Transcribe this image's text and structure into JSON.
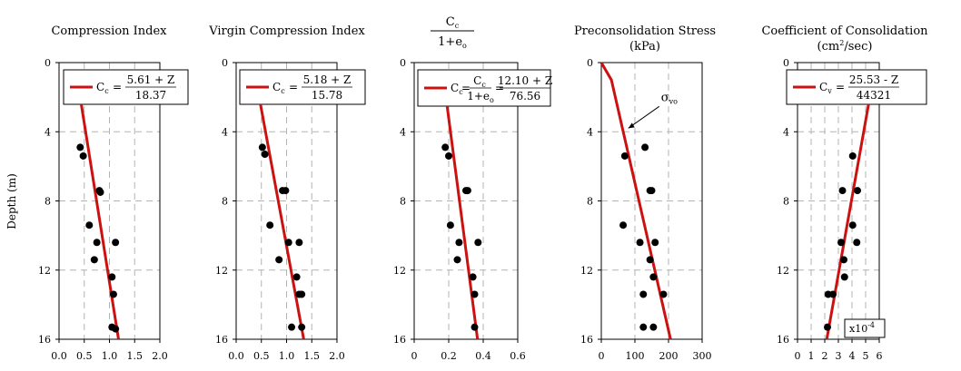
{
  "figure": {
    "ylabel": "Depth (m)"
  },
  "colors": {
    "fit_line": "#cc1111",
    "points": "#000000",
    "grid": "#b3b3b3",
    "axis": "#000000"
  },
  "chart_data": [
    {
      "type": "scatter",
      "title": "Compression Index",
      "xlim": [
        0,
        2
      ],
      "xticks": [
        "0.0",
        "0.5",
        "1.0",
        "1.5",
        "2.0"
      ],
      "ylim": [
        0,
        16
      ],
      "yticks": [
        "0",
        "4",
        "8",
        "12",
        "16"
      ],
      "grid": true,
      "legend": {
        "symbol": "C",
        "subscript": "c",
        "numerator": "5.61 + Z",
        "denominator": "18.37"
      },
      "fit": {
        "x": [
          0.31,
          1.18
        ],
        "y": [
          0,
          16
        ]
      },
      "points": [
        [
          0.42,
          4.9
        ],
        [
          0.48,
          5.4
        ],
        [
          0.8,
          7.4
        ],
        [
          0.82,
          7.5
        ],
        [
          0.6,
          9.4
        ],
        [
          0.75,
          10.4
        ],
        [
          1.12,
          10.4
        ],
        [
          0.7,
          11.4
        ],
        [
          1.05,
          12.4
        ],
        [
          1.08,
          13.4
        ],
        [
          1.05,
          15.3
        ],
        [
          1.12,
          15.4
        ]
      ]
    },
    {
      "type": "scatter",
      "title": "Virgin Compression Index",
      "xlim": [
        0,
        2
      ],
      "xticks": [
        "0.0",
        "0.5",
        "1.0",
        "1.5",
        "2.0"
      ],
      "ylim": [
        0,
        16
      ],
      "yticks": [
        "0",
        "4",
        "8",
        "12",
        "16"
      ],
      "grid": true,
      "legend": {
        "symbol": "C",
        "subscript": "c",
        "numerator": "5.18 + Z",
        "denominator": "15.78"
      },
      "fit": {
        "x": [
          0.33,
          1.34
        ],
        "y": [
          0,
          16
        ]
      },
      "points": [
        [
          0.52,
          4.9
        ],
        [
          0.57,
          5.3
        ],
        [
          0.92,
          7.4
        ],
        [
          0.98,
          7.4
        ],
        [
          0.67,
          9.4
        ],
        [
          1.04,
          10.4
        ],
        [
          1.25,
          10.4
        ],
        [
          0.85,
          11.4
        ],
        [
          1.2,
          12.4
        ],
        [
          1.25,
          13.4
        ],
        [
          1.3,
          13.4
        ],
        [
          1.1,
          15.3
        ],
        [
          1.3,
          15.3
        ]
      ]
    },
    {
      "type": "scatter",
      "title": "C_c/(1+e_o)",
      "xlim": [
        0,
        0.6
      ],
      "xticks": [
        "0",
        "0.2",
        "0.4",
        "0.6"
      ],
      "ylim": [
        0,
        16
      ],
      "yticks": [
        "0",
        "4",
        "8",
        "12",
        "16"
      ],
      "grid": true,
      "legend": {
        "symbol": "C",
        "subscript": "c",
        "frac_num": "C",
        "frac_num_sub": "c",
        "frac_den": "1+e",
        "frac_den_sub": "o",
        "numerator": "12.10 + Z",
        "denominator": "76.56"
      },
      "fit": {
        "x": [
          0.158,
          0.367
        ],
        "y": [
          0,
          16
        ]
      },
      "points": [
        [
          0.18,
          4.9
        ],
        [
          0.2,
          5.4
        ],
        [
          0.3,
          7.4
        ],
        [
          0.31,
          7.4
        ],
        [
          0.21,
          9.4
        ],
        [
          0.26,
          10.4
        ],
        [
          0.37,
          10.4
        ],
        [
          0.25,
          11.4
        ],
        [
          0.34,
          12.4
        ],
        [
          0.35,
          13.4
        ],
        [
          0.35,
          15.3
        ]
      ]
    },
    {
      "type": "scatter",
      "title": "Preconsolidation Stress",
      "subtitle": "(kPa)",
      "xlim": [
        0,
        300
      ],
      "xticks": [
        "0",
        "100",
        "200",
        "300"
      ],
      "ylim": [
        0,
        16
      ],
      "yticks": [
        "0",
        "4",
        "8",
        "12",
        "16"
      ],
      "grid": true,
      "annotation": {
        "symbol": "σ",
        "subscript": "vo",
        "x": 75,
        "y": 3.9
      },
      "stress_line": {
        "x": [
          0,
          30,
          206
        ],
        "y": [
          0,
          1,
          16
        ]
      },
      "points": [
        [
          130,
          4.9
        ],
        [
          70,
          5.4
        ],
        [
          145,
          7.4
        ],
        [
          150,
          7.4
        ],
        [
          65,
          9.4
        ],
        [
          115,
          10.4
        ],
        [
          160,
          10.4
        ],
        [
          145,
          11.4
        ],
        [
          155,
          12.4
        ],
        [
          125,
          13.4
        ],
        [
          185,
          13.4
        ],
        [
          125,
          15.3
        ],
        [
          155,
          15.3
        ]
      ]
    },
    {
      "type": "scatter",
      "title": "Coefficient of Consolidation",
      "subtitle_parts": [
        "(cm",
        "2",
        "/sec)"
      ],
      "xlim": [
        0,
        6
      ],
      "xticks": [
        "0",
        "1",
        "2",
        "3",
        "4",
        "5",
        "6"
      ],
      "ylim": [
        0,
        16
      ],
      "yticks": [
        "0",
        "4",
        "8",
        "12",
        "16"
      ],
      "grid": true,
      "legend": {
        "symbol": "C",
        "subscript": "v",
        "numerator": "25.53 - Z",
        "denominator": "44321"
      },
      "multiplier": {
        "base": "x10",
        "exponent": "-4"
      },
      "fit": {
        "x": [
          5.76,
          2.15
        ],
        "y": [
          0,
          16
        ]
      },
      "points": [
        [
          4.05,
          5.4
        ],
        [
          3.3,
          7.4
        ],
        [
          4.4,
          7.4
        ],
        [
          4.05,
          9.4
        ],
        [
          3.2,
          10.4
        ],
        [
          4.35,
          10.4
        ],
        [
          3.4,
          11.4
        ],
        [
          3.45,
          12.4
        ],
        [
          2.25,
          13.4
        ],
        [
          2.6,
          13.4
        ],
        [
          2.2,
          15.3
        ]
      ]
    }
  ]
}
